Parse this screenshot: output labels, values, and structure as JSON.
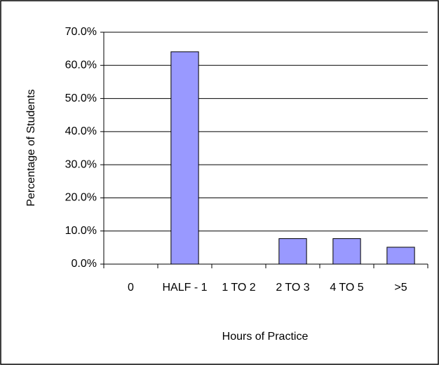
{
  "chart_data": {
    "type": "bar",
    "x_label": "Hours of Practice",
    "y_label": "Percentage of Students",
    "categories": [
      "0",
      "HALF - 1",
      "1 TO 2",
      "2 TO 3",
      "4 TO 5",
      ">5"
    ],
    "values": [
      0,
      64.1,
      0,
      7.7,
      7.7,
      5.1
    ],
    "color": "#9999ff",
    "ylim": [
      0,
      70
    ],
    "yticks": [
      {
        "value": 0,
        "label": "0.0%"
      },
      {
        "value": 10,
        "label": "10.0%"
      },
      {
        "value": 20,
        "label": "20.0%"
      },
      {
        "value": 30,
        "label": "30.0%"
      },
      {
        "value": 40,
        "label": "40.0%"
      },
      {
        "value": 50,
        "label": "50.0%"
      },
      {
        "value": 60,
        "label": "60.0%"
      },
      {
        "value": 70,
        "label": "70.0%"
      }
    ],
    "grid": true
  }
}
